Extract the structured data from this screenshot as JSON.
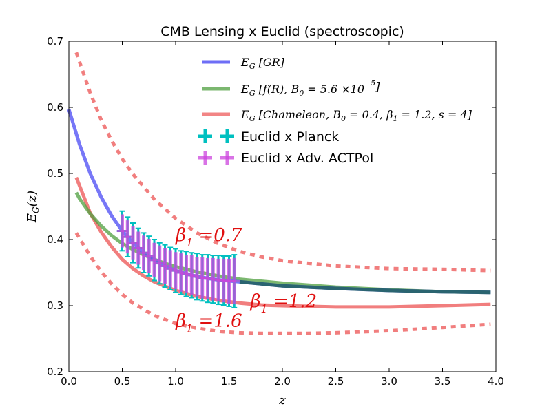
{
  "chart_data": {
    "type": "line",
    "title": "CMB Lensing x Euclid (spectroscopic)",
    "xlabel": "z",
    "ylabel": "E_G(z)",
    "xlim": [
      0.0,
      4.0
    ],
    "ylim": [
      0.2,
      0.7
    ],
    "xticks": [
      "0.0",
      "0.5",
      "1.0",
      "1.5",
      "2.0",
      "2.5",
      "3.0",
      "3.5",
      "4.0"
    ],
    "yticks": [
      "0.2",
      "0.3",
      "0.4",
      "0.5",
      "0.6",
      "0.7"
    ],
    "colors": {
      "gr": "#5555f5",
      "fr": "#4f9f3f",
      "chameleon": "#f07070",
      "planck": "#00c0c0",
      "actpol": "#cc44dd",
      "annotation": "#e01010",
      "merged": "#2a6470"
    },
    "series": [
      {
        "name": "E_G [GR]",
        "legend_label": "E_G [GR]",
        "x": [
          0.0,
          0.1,
          0.2,
          0.3,
          0.4,
          0.5,
          0.6,
          0.7,
          0.8,
          0.9,
          1.0,
          1.2,
          1.4,
          1.6,
          1.8,
          2.0,
          2.5,
          3.0,
          3.5,
          3.95
        ],
        "values": [
          0.597,
          0.544,
          0.5,
          0.465,
          0.436,
          0.413,
          0.395,
          0.38,
          0.369,
          0.36,
          0.353,
          0.344,
          0.339,
          0.336,
          0.333,
          0.33,
          0.326,
          0.323,
          0.321,
          0.32
        ]
      },
      {
        "name": "E_G [f(R), B0 = 5.6e-5]",
        "legend_label": "E_G [f(R), B_0 = 5.6 ×10^-5]",
        "x": [
          0.07,
          0.1,
          0.2,
          0.3,
          0.4,
          0.5,
          0.6,
          0.7,
          0.8,
          0.9,
          1.0,
          1.2,
          1.4,
          1.6,
          1.8,
          2.0,
          2.5,
          3.0,
          3.5,
          3.95
        ],
        "values": [
          0.471,
          0.462,
          0.439,
          0.421,
          0.406,
          0.394,
          0.385,
          0.377,
          0.37,
          0.364,
          0.359,
          0.351,
          0.345,
          0.34,
          0.337,
          0.334,
          0.328,
          0.324,
          0.321,
          0.32
        ]
      },
      {
        "name": "E_G [Chameleon, B0 = 0.4, beta1 = 1.2, s = 4]",
        "legend_label": "E_G [Chameleon, B_0 = 0.4, β_1 = 1.2, s = 4]",
        "x": [
          0.07,
          0.2,
          0.3,
          0.4,
          0.5,
          0.6,
          0.7,
          0.8,
          1.0,
          1.2,
          1.4,
          1.6,
          1.8,
          2.0,
          2.5,
          3.0,
          3.5,
          3.95
        ],
        "values": [
          0.494,
          0.44,
          0.412,
          0.389,
          0.37,
          0.356,
          0.345,
          0.336,
          0.323,
          0.314,
          0.308,
          0.304,
          0.301,
          0.3,
          0.298,
          0.298,
          0.3,
          0.302
        ]
      },
      {
        "name": "beta1 = 0.7 (dashed)",
        "x": [
          0.07,
          0.2,
          0.3,
          0.4,
          0.5,
          0.6,
          0.8,
          1.0,
          1.2,
          1.4,
          1.6,
          1.8,
          2.0,
          2.5,
          3.0,
          3.5,
          3.95
        ],
        "values": [
          0.683,
          0.622,
          0.582,
          0.55,
          0.522,
          0.499,
          0.461,
          0.432,
          0.41,
          0.394,
          0.382,
          0.374,
          0.368,
          0.36,
          0.356,
          0.355,
          0.353
        ]
      },
      {
        "name": "beta1 = 1.6 (dashed)",
        "x": [
          0.07,
          0.2,
          0.3,
          0.4,
          0.5,
          0.6,
          0.8,
          1.0,
          1.2,
          1.4,
          1.6,
          1.8,
          2.0,
          2.2,
          2.5,
          3.0,
          3.5,
          3.95
        ],
        "values": [
          0.41,
          0.375,
          0.352,
          0.333,
          0.317,
          0.304,
          0.285,
          0.273,
          0.266,
          0.261,
          0.259,
          0.258,
          0.258,
          0.258,
          0.259,
          0.262,
          0.267,
          0.272
        ]
      }
    ],
    "error_bars": {
      "x": [
        0.5,
        0.55,
        0.6,
        0.65,
        0.7,
        0.75,
        0.8,
        0.85,
        0.9,
        0.95,
        1.0,
        1.05,
        1.1,
        1.15,
        1.2,
        1.25,
        1.3,
        1.35,
        1.4,
        1.45,
        1.5,
        1.55
      ],
      "y": [
        0.413,
        0.404,
        0.395,
        0.387,
        0.38,
        0.375,
        0.369,
        0.364,
        0.36,
        0.356,
        0.353,
        0.35,
        0.348,
        0.346,
        0.344,
        0.342,
        0.341,
        0.34,
        0.339,
        0.338,
        0.337,
        0.337
      ],
      "planck_err": [
        0.03,
        0.03,
        0.03,
        0.03,
        0.03,
        0.03,
        0.031,
        0.031,
        0.032,
        0.032,
        0.033,
        0.033,
        0.034,
        0.034,
        0.035,
        0.035,
        0.036,
        0.036,
        0.037,
        0.037,
        0.038,
        0.04
      ],
      "actpol_err": [
        0.025,
        0.025,
        0.025,
        0.025,
        0.026,
        0.026,
        0.026,
        0.027,
        0.027,
        0.028,
        0.028,
        0.029,
        0.029,
        0.03,
        0.03,
        0.031,
        0.031,
        0.032,
        0.032,
        0.033,
        0.034,
        0.035
      ],
      "planck_x_halfwidth": 0.05
    },
    "legend": {
      "placement": "top-center",
      "entries": [
        {
          "label": "E_G [GR]",
          "style": "line",
          "color": "#5555f5"
        },
        {
          "label": "E_G [f(R), B_0 = 5.6 ×10^-5]",
          "style": "line",
          "color": "#4f9f3f"
        },
        {
          "label": "E_G [Chameleon, B_0 = 0.4, β_1 = 1.2, s = 4]",
          "style": "line",
          "color": "#f07070"
        },
        {
          "label": "Euclid x Planck",
          "style": "errorbar",
          "color": "#00c0c0"
        },
        {
          "label": "Euclid x Adv. ACTPol",
          "style": "errorbar",
          "color": "#cc44dd"
        }
      ]
    },
    "annotations": [
      {
        "text": "β_1 = 0.7",
        "base": "β",
        "sub": "1",
        "rest": " =0.7",
        "x": 1.0,
        "y": 0.398
      },
      {
        "text": "β_1 = 1.2",
        "base": "β",
        "sub": "1",
        "rest": " =1.2",
        "x": 1.7,
        "y": 0.298
      },
      {
        "text": "β_1 = 1.6",
        "base": "β",
        "sub": "1",
        "rest": " =1.6",
        "x": 1.0,
        "y": 0.268
      }
    ]
  }
}
